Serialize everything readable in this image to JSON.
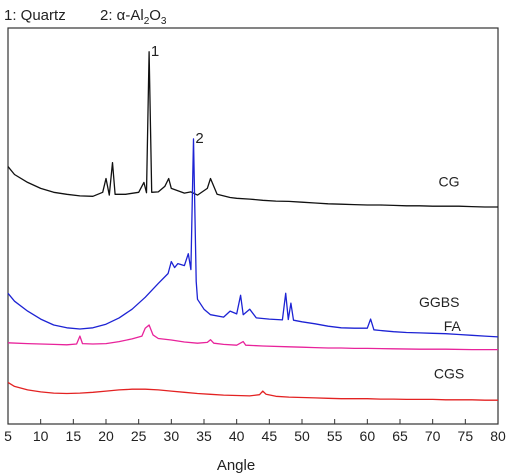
{
  "legend_note": {
    "item1_prefix": "1: Quartz",
    "item2_prefix": "2: α-Al",
    "sub2": "2",
    "mid": "O",
    "sub3": "3"
  },
  "peak_labels": [
    {
      "text": "1",
      "x": 26.6
    },
    {
      "text": "2",
      "x": 33.4
    }
  ],
  "chart_data": {
    "type": "line",
    "title": "",
    "xlabel": "Angle",
    "ylabel": "",
    "xlim": [
      5,
      80
    ],
    "ylim": [
      0,
      100
    ],
    "xticks": [
      5,
      10,
      15,
      20,
      25,
      30,
      35,
      40,
      45,
      50,
      55,
      60,
      65,
      70,
      75,
      80
    ],
    "y_axis_ticks_shown": false,
    "grid": false,
    "series": [
      {
        "name": "CG",
        "color": "#111111",
        "points": [
          [
            5,
            65
          ],
          [
            6,
            63
          ],
          [
            8,
            61
          ],
          [
            10,
            59.5
          ],
          [
            12,
            58.5
          ],
          [
            14,
            58
          ],
          [
            16,
            57.6
          ],
          [
            18,
            57.5
          ],
          [
            19.5,
            58.5
          ],
          [
            20,
            62
          ],
          [
            20.5,
            57.8
          ],
          [
            21,
            66
          ],
          [
            21.4,
            58
          ],
          [
            23,
            58
          ],
          [
            25,
            58.5
          ],
          [
            25.8,
            61
          ],
          [
            26.2,
            58.4
          ],
          [
            26.6,
            94
          ],
          [
            27,
            58.5
          ],
          [
            28,
            58.6
          ],
          [
            29,
            60
          ],
          [
            29.6,
            62
          ],
          [
            30,
            59.5
          ],
          [
            32,
            58.3
          ],
          [
            33,
            58.6
          ],
          [
            34,
            57.8
          ],
          [
            35.5,
            59.5
          ],
          [
            36,
            62
          ],
          [
            37,
            58
          ],
          [
            39,
            57.2
          ],
          [
            40,
            57
          ],
          [
            42,
            56.8
          ],
          [
            44,
            56.5
          ],
          [
            46,
            56.3
          ],
          [
            48,
            56.2
          ],
          [
            50,
            56
          ],
          [
            52,
            55.8
          ],
          [
            54,
            55.6
          ],
          [
            56,
            55.5
          ],
          [
            58,
            55.4
          ],
          [
            60,
            55.3
          ],
          [
            62,
            55.3
          ],
          [
            64,
            55.2
          ],
          [
            66,
            55.1
          ],
          [
            68,
            55.1
          ],
          [
            70,
            55
          ],
          [
            72,
            55
          ],
          [
            74,
            55
          ],
          [
            76,
            54.9
          ],
          [
            78,
            54.8
          ],
          [
            80,
            54.8
          ]
        ]
      },
      {
        "name": "GGBS",
        "color": "#1d23d4",
        "points": [
          [
            5,
            33
          ],
          [
            6,
            31
          ],
          [
            8,
            28.5
          ],
          [
            10,
            26.5
          ],
          [
            12,
            25
          ],
          [
            14,
            24.3
          ],
          [
            16,
            24
          ],
          [
            18,
            24.3
          ],
          [
            20,
            25.2
          ],
          [
            22,
            26.8
          ],
          [
            24,
            29
          ],
          [
            26,
            32
          ],
          [
            28,
            35.5
          ],
          [
            29.5,
            38
          ],
          [
            30,
            41
          ],
          [
            30.5,
            39.5
          ],
          [
            31,
            40.5
          ],
          [
            32,
            40
          ],
          [
            32.6,
            43
          ],
          [
            33,
            39
          ],
          [
            33.4,
            72
          ],
          [
            33.8,
            36
          ],
          [
            34,
            31.5
          ],
          [
            35,
            29
          ],
          [
            36,
            27.6
          ],
          [
            38,
            27
          ],
          [
            39,
            28.5
          ],
          [
            40,
            27.8
          ],
          [
            40.6,
            32.5
          ],
          [
            41,
            27.6
          ],
          [
            42,
            29
          ],
          [
            43,
            26.8
          ],
          [
            45,
            26.5
          ],
          [
            47,
            26.3
          ],
          [
            47.5,
            33
          ],
          [
            47.9,
            26.4
          ],
          [
            48.3,
            30.5
          ],
          [
            48.7,
            26.2
          ],
          [
            50,
            25.8
          ],
          [
            52,
            25.3
          ],
          [
            54,
            24.7
          ],
          [
            56,
            24.3
          ],
          [
            58,
            24.2
          ],
          [
            60,
            24.2
          ],
          [
            60.5,
            26.5
          ],
          [
            61,
            23.8
          ],
          [
            62,
            23.6
          ],
          [
            64,
            23.3
          ],
          [
            66,
            23.1
          ],
          [
            68,
            23
          ],
          [
            70,
            22.9
          ],
          [
            72,
            22.8
          ],
          [
            74,
            22.6
          ],
          [
            76,
            22.4
          ],
          [
            78,
            22.2
          ],
          [
            80,
            22
          ]
        ]
      },
      {
        "name": "FA",
        "color": "#e8239b",
        "points": [
          [
            5,
            20.5
          ],
          [
            8,
            20.3
          ],
          [
            10,
            20.2
          ],
          [
            12,
            20.1
          ],
          [
            14,
            20
          ],
          [
            15.5,
            20.2
          ],
          [
            16,
            22.2
          ],
          [
            16.4,
            20.3
          ],
          [
            18,
            20.2
          ],
          [
            20,
            20.3
          ],
          [
            22,
            20.8
          ],
          [
            24,
            21.5
          ],
          [
            25.5,
            22.2
          ],
          [
            26,
            24.2
          ],
          [
            26.6,
            25
          ],
          [
            27.2,
            22.5
          ],
          [
            28,
            21.6
          ],
          [
            30,
            21.2
          ],
          [
            32,
            20.7
          ],
          [
            34,
            20.4
          ],
          [
            35.5,
            20.6
          ],
          [
            36,
            21.3
          ],
          [
            36.5,
            20.4
          ],
          [
            38,
            20.1
          ],
          [
            40,
            19.9
          ],
          [
            41,
            20.8
          ],
          [
            41.4,
            19.9
          ],
          [
            44,
            19.7
          ],
          [
            48,
            19.5
          ],
          [
            50,
            19.4
          ],
          [
            52,
            19.3
          ],
          [
            54,
            19.2
          ],
          [
            56,
            19.2
          ],
          [
            58,
            19.1
          ],
          [
            60,
            19.1
          ],
          [
            64,
            19
          ],
          [
            68,
            18.9
          ],
          [
            72,
            18.9
          ],
          [
            76,
            18.8
          ],
          [
            80,
            18.8
          ]
        ]
      },
      {
        "name": "CGS",
        "color": "#e32222",
        "points": [
          [
            5,
            10.5
          ],
          [
            6,
            9.5
          ],
          [
            8,
            8.6
          ],
          [
            10,
            8.1
          ],
          [
            12,
            7.8
          ],
          [
            14,
            7.7
          ],
          [
            16,
            7.8
          ],
          [
            18,
            8
          ],
          [
            20,
            8.3
          ],
          [
            22,
            8.6
          ],
          [
            24,
            8.8
          ],
          [
            26,
            8.8
          ],
          [
            28,
            8.6
          ],
          [
            30,
            8.3
          ],
          [
            32,
            8
          ],
          [
            34,
            7.7
          ],
          [
            36,
            7.5
          ],
          [
            38,
            7.3
          ],
          [
            40,
            7.2
          ],
          [
            42,
            7.1
          ],
          [
            43.5,
            7.4
          ],
          [
            44,
            8.3
          ],
          [
            44.5,
            7.5
          ],
          [
            46,
            7
          ],
          [
            48,
            6.8
          ],
          [
            50,
            6.7
          ],
          [
            52,
            6.6
          ],
          [
            54,
            6.5
          ],
          [
            56,
            6.4
          ],
          [
            58,
            6.4
          ],
          [
            60,
            6.4
          ],
          [
            62,
            6.3
          ],
          [
            64,
            6.3
          ],
          [
            66,
            6.2
          ],
          [
            68,
            6.2
          ],
          [
            70,
            6.2
          ],
          [
            72,
            6.1
          ],
          [
            74,
            6.1
          ],
          [
            76,
            6.1
          ],
          [
            78,
            6
          ],
          [
            80,
            6
          ]
        ]
      }
    ],
    "series_labels": [
      {
        "series": "CG",
        "text": "CG",
        "x": 72.5,
        "y": 58.5
      },
      {
        "series": "GGBS",
        "text": "GGBS",
        "x": 71,
        "y": 28
      },
      {
        "series": "FA",
        "text": "FA",
        "x": 73,
        "y": 22
      },
      {
        "series": "CGS",
        "text": "CGS",
        "x": 72.5,
        "y": 10
      }
    ]
  }
}
